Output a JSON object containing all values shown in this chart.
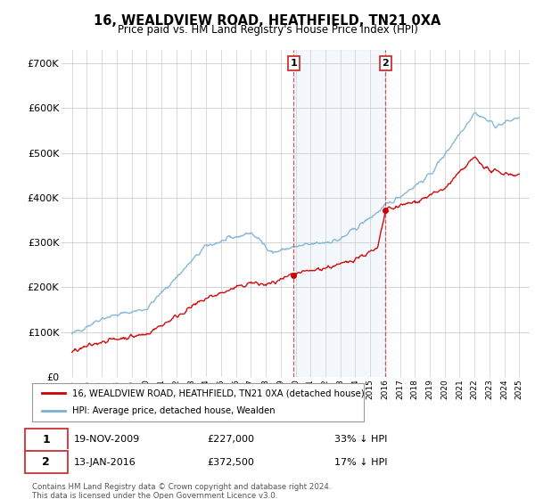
{
  "title": "16, WEALDVIEW ROAD, HEATHFIELD, TN21 0XA",
  "subtitle": "Price paid vs. HM Land Registry's House Price Index (HPI)",
  "legend_label_red": "16, WEALDVIEW ROAD, HEATHFIELD, TN21 0XA (detached house)",
  "legend_label_blue": "HPI: Average price, detached house, Wealden",
  "annotation1_date": "19-NOV-2009",
  "annotation1_price": "£227,000",
  "annotation1_hpi": "33% ↓ HPI",
  "annotation1_year": 2009.88,
  "annotation1_value": 227000,
  "annotation2_date": "13-JAN-2016",
  "annotation2_price": "£372,500",
  "annotation2_hpi": "17% ↓ HPI",
  "annotation2_year": 2016.04,
  "annotation2_value": 372500,
  "footer": "Contains HM Land Registry data © Crown copyright and database right 2024.\nThis data is licensed under the Open Government Licence v3.0.",
  "ylim": [
    0,
    730000
  ],
  "yticks": [
    0,
    100000,
    200000,
    300000,
    400000,
    500000,
    600000,
    700000
  ],
  "ytick_labels": [
    "£0",
    "£100K",
    "£200K",
    "£300K",
    "£400K",
    "£500K",
    "£600K",
    "£700K"
  ],
  "red_color": "#cc0000",
  "blue_color": "#7ab0d4"
}
